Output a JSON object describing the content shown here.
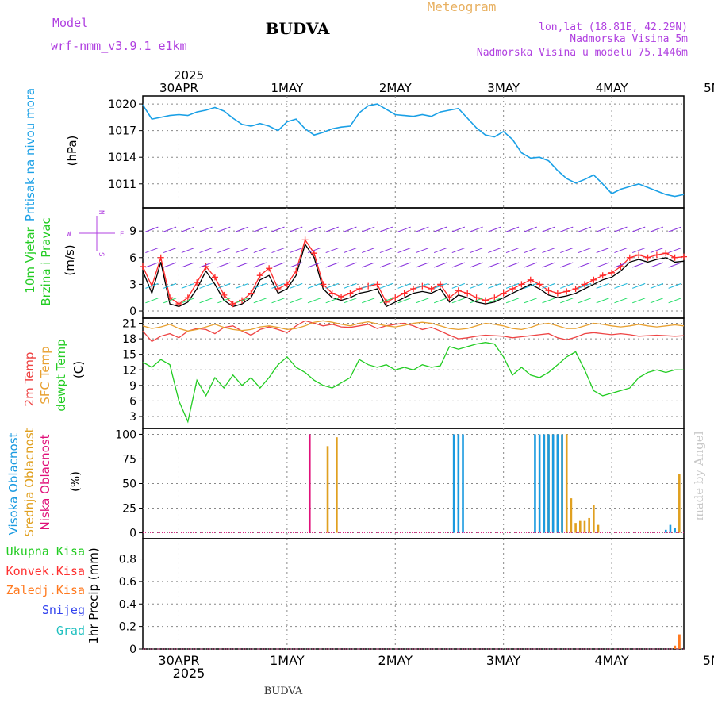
{
  "header": {
    "model_label": "Model",
    "model_name": "wrf-nmm_v3.9.1 e1km",
    "station": "BUDVA",
    "chart_kind": "Meteogram",
    "coords": "lon,lat (18.81E, 42.29N)",
    "elevation": "Nadmorska Visina 5m",
    "model_elevation": "Nadmorska Visina u modelu 75.1446m",
    "footer_station": "BUDVA",
    "credit": "made by Angel"
  },
  "axes": {
    "year": "2025",
    "day_labels": [
      "30APR",
      "1MAY",
      "2MAY",
      "3MAY",
      "4MAY",
      "5MAY"
    ],
    "x_range_hours": [
      -8,
      112
    ]
  },
  "colors": {
    "pressure": "#1aa0e6",
    "wind_speed": "#000000",
    "wind_gust": "#ff2a2a",
    "temp_2m": "#ee4444",
    "temp_sfc": "#e8a030",
    "dewpoint": "#22cc22",
    "cloud_high": "#1a9ae0",
    "cloud_mid": "#e0a020",
    "cloud_low": "#e0107a",
    "precip_total": "#22cc22",
    "precip_conv": "#ff3030",
    "precip_strat": "#ff7a20",
    "snow": "#3344ee",
    "hail": "#20c0c0",
    "label_magenta": "#b040e0",
    "label_orange": "#e8b060"
  },
  "chart_data": [
    {
      "id": "pressure",
      "type": "line",
      "ylabel_left": "Pritisak na nivou mora",
      "ylabel_unit": "(hPa)",
      "yticks": [
        1011,
        1014,
        1017,
        1020
      ],
      "ylim": [
        1008.3,
        1020.9
      ],
      "grid": true,
      "series": [
        {
          "key": "pressure",
          "x": [
            -8,
            -6,
            -4,
            -2,
            0,
            2,
            4,
            6,
            8,
            10,
            12,
            14,
            16,
            18,
            20,
            22,
            24,
            26,
            28,
            30,
            32,
            34,
            36,
            38,
            40,
            42,
            44,
            46,
            48,
            50,
            52,
            54,
            56,
            58,
            60,
            62,
            64,
            66,
            68,
            70,
            72,
            74,
            76,
            78,
            80,
            82,
            84,
            86,
            88,
            90,
            92,
            94,
            96,
            98,
            100,
            102,
            104,
            106,
            108,
            110,
            112
          ],
          "values": [
            1019.9,
            1018.3,
            1018.5,
            1018.7,
            1018.8,
            1018.7,
            1019.1,
            1019.3,
            1019.6,
            1019.2,
            1018.4,
            1017.7,
            1017.5,
            1017.8,
            1017.5,
            1017.0,
            1018.0,
            1018.3,
            1017.2,
            1016.5,
            1016.8,
            1017.2,
            1017.4,
            1017.5,
            1019.0,
            1019.8,
            1020.0,
            1019.4,
            1018.8,
            1018.7,
            1018.6,
            1018.8,
            1018.6,
            1019.1,
            1019.3,
            1019.5,
            1018.4,
            1017.3,
            1016.5,
            1016.3,
            1016.9,
            1016.0,
            1014.5,
            1013.9,
            1014.0,
            1013.6,
            1012.5,
            1011.6,
            1011.1,
            1011.5,
            1012.0,
            1011.0,
            1009.9,
            1010.4,
            1010.7,
            1011.0,
            1010.6,
            1010.2,
            1009.8,
            1009.6,
            1009.8
          ]
        }
      ]
    },
    {
      "id": "wind",
      "type": "line",
      "ylabel_left": "10m Vjetar",
      "ylabel_left2": "Brzina i Pravac",
      "ylabel_unit": "(m/s)",
      "compass": {
        "w": "W",
        "e": "E",
        "n": "N",
        "s": "S"
      },
      "yticks": [
        0,
        3,
        6,
        9
      ],
      "ylim": [
        -0.8,
        11.6
      ],
      "grid": true,
      "series": [
        {
          "key": "wind_speed",
          "name": "speed",
          "x": [
            -8,
            -6,
            -4,
            -2,
            0,
            2,
            4,
            6,
            8,
            10,
            12,
            14,
            16,
            18,
            20,
            22,
            24,
            26,
            28,
            30,
            32,
            34,
            36,
            38,
            40,
            42,
            44,
            46,
            48,
            50,
            52,
            54,
            56,
            58,
            60,
            62,
            64,
            66,
            68,
            70,
            72,
            74,
            76,
            78,
            80,
            82,
            84,
            86,
            88,
            90,
            92,
            94,
            96,
            98,
            100,
            102,
            104,
            106,
            108,
            110,
            112
          ],
          "values": [
            4.5,
            2.0,
            5.5,
            0.8,
            0.5,
            1.0,
            2.5,
            4.5,
            3.0,
            1.2,
            0.5,
            0.8,
            1.5,
            3.5,
            4.0,
            2.0,
            2.5,
            4.0,
            7.5,
            6.0,
            2.5,
            1.5,
            1.2,
            1.5,
            2.0,
            2.2,
            2.5,
            0.5,
            1.0,
            1.5,
            2.0,
            2.2,
            2.0,
            2.5,
            1.0,
            1.8,
            1.5,
            1.0,
            0.8,
            1.0,
            1.5,
            2.0,
            2.5,
            3.0,
            2.5,
            1.8,
            1.5,
            1.7,
            2.0,
            2.5,
            3.0,
            3.5,
            3.8,
            4.5,
            5.5,
            5.8,
            5.5,
            5.8,
            6.0,
            5.5,
            5.6
          ]
        },
        {
          "key": "wind_gust",
          "name": "gust",
          "x": [
            -8,
            -6,
            -4,
            -2,
            0,
            2,
            4,
            6,
            8,
            10,
            12,
            14,
            16,
            18,
            20,
            22,
            24,
            26,
            28,
            30,
            32,
            34,
            36,
            38,
            40,
            42,
            44,
            46,
            48,
            50,
            52,
            54,
            56,
            58,
            60,
            62,
            64,
            66,
            68,
            70,
            72,
            74,
            76,
            78,
            80,
            82,
            84,
            86,
            88,
            90,
            92,
            94,
            96,
            98,
            100,
            102,
            104,
            106,
            108,
            110,
            112
          ],
          "values": [
            5.0,
            2.8,
            6.0,
            1.5,
            0.8,
            1.5,
            3.2,
            5.0,
            3.8,
            1.8,
            0.8,
            1.2,
            2.0,
            4.0,
            4.8,
            2.5,
            3.0,
            4.5,
            8.0,
            6.5,
            3.0,
            2.0,
            1.6,
            2.0,
            2.5,
            2.8,
            3.0,
            1.0,
            1.5,
            2.0,
            2.5,
            2.8,
            2.5,
            3.0,
            1.5,
            2.3,
            2.0,
            1.5,
            1.2,
            1.5,
            2.0,
            2.5,
            3.0,
            3.5,
            3.0,
            2.3,
            2.0,
            2.2,
            2.5,
            3.0,
            3.5,
            4.0,
            4.3,
            5.0,
            6.0,
            6.3,
            6.0,
            6.3,
            6.5,
            6.0,
            6.1
          ]
        }
      ]
    },
    {
      "id": "temperature",
      "type": "line",
      "ylabel_left": "2m Temp",
      "ylabel_left2": "SFC Temp",
      "ylabel_left3": "dewpt Temp",
      "ylabel_unit": "(C)",
      "yticks": [
        3,
        6,
        9,
        12,
        15,
        18,
        21
      ],
      "ylim": [
        0.7,
        22.0
      ],
      "grid": true,
      "series": [
        {
          "key": "temp_2m",
          "name": "2m Temp",
          "x": [
            -8,
            -6,
            -4,
            -2,
            0,
            2,
            4,
            6,
            8,
            10,
            12,
            14,
            16,
            18,
            20,
            22,
            24,
            26,
            28,
            30,
            32,
            34,
            36,
            38,
            40,
            42,
            44,
            46,
            48,
            50,
            52,
            54,
            56,
            58,
            60,
            62,
            64,
            66,
            68,
            70,
            72,
            74,
            76,
            78,
            80,
            82,
            84,
            86,
            88,
            90,
            92,
            94,
            96,
            98,
            100,
            102,
            104,
            106,
            108,
            110,
            112
          ],
          "values": [
            19.5,
            17.5,
            18.5,
            19.0,
            18.2,
            19.5,
            20.0,
            19.8,
            19.0,
            20.2,
            20.5,
            19.5,
            18.7,
            19.8,
            20.3,
            19.8,
            19.2,
            20.5,
            21.5,
            21.0,
            20.5,
            20.8,
            20.3,
            20.2,
            20.5,
            20.8,
            20.0,
            20.5,
            20.8,
            21.0,
            20.5,
            19.8,
            20.2,
            19.5,
            18.7,
            18.0,
            18.2,
            18.5,
            18.7,
            18.6,
            18.5,
            18.2,
            18.4,
            18.6,
            18.8,
            19.0,
            18.2,
            17.8,
            18.3,
            19.0,
            19.2,
            19.0,
            18.8,
            19.0,
            18.8,
            18.5,
            18.6,
            18.7,
            18.6,
            18.5,
            18.6
          ]
        },
        {
          "key": "temp_sfc",
          "name": "SFC Temp",
          "x": [
            -8,
            -6,
            -4,
            -2,
            0,
            2,
            4,
            6,
            8,
            10,
            12,
            14,
            16,
            18,
            20,
            22,
            24,
            26,
            28,
            30,
            32,
            34,
            36,
            38,
            40,
            42,
            44,
            46,
            48,
            50,
            52,
            54,
            56,
            58,
            60,
            62,
            64,
            66,
            68,
            70,
            72,
            74,
            76,
            78,
            80,
            82,
            84,
            86,
            88,
            90,
            92,
            94,
            96,
            98,
            100,
            102,
            104,
            106,
            108,
            110,
            112
          ],
          "values": [
            20.5,
            20.0,
            20.3,
            20.8,
            20.0,
            19.5,
            19.8,
            20.3,
            20.8,
            20.2,
            19.8,
            19.6,
            19.8,
            20.3,
            20.5,
            20.2,
            19.8,
            20.0,
            20.5,
            21.2,
            21.5,
            21.2,
            20.8,
            20.5,
            21.0,
            21.3,
            20.9,
            20.5,
            20.3,
            20.6,
            21.0,
            21.2,
            21.0,
            20.5,
            20.0,
            19.8,
            20.0,
            20.5,
            21.0,
            20.8,
            20.5,
            20.0,
            19.8,
            20.2,
            20.8,
            21.0,
            20.5,
            20.0,
            20.0,
            20.5,
            21.0,
            20.8,
            20.5,
            20.3,
            20.5,
            20.8,
            20.5,
            20.3,
            20.5,
            20.7,
            20.5
          ]
        },
        {
          "key": "dewpoint",
          "name": "dewpt Temp",
          "x": [
            -8,
            -6,
            -4,
            -2,
            0,
            2,
            4,
            6,
            8,
            10,
            12,
            14,
            16,
            18,
            20,
            22,
            24,
            26,
            28,
            30,
            32,
            34,
            36,
            38,
            40,
            42,
            44,
            46,
            48,
            50,
            52,
            54,
            56,
            58,
            60,
            62,
            64,
            66,
            68,
            70,
            72,
            74,
            76,
            78,
            80,
            82,
            84,
            86,
            88,
            90,
            92,
            94,
            96,
            98,
            100,
            102,
            104,
            106,
            108,
            110,
            112
          ],
          "values": [
            13.5,
            12.5,
            14.0,
            13.0,
            6.0,
            2.0,
            10.0,
            7.0,
            10.5,
            8.5,
            11.0,
            9.0,
            10.5,
            8.5,
            10.5,
            13.0,
            14.5,
            12.5,
            11.5,
            10.0,
            9.0,
            8.5,
            9.5,
            10.5,
            14.0,
            13.0,
            12.5,
            13.0,
            12.0,
            12.5,
            12.0,
            13.0,
            12.5,
            12.8,
            16.5,
            16.0,
            16.5,
            17.0,
            17.3,
            17.0,
            14.5,
            11.0,
            12.5,
            11.0,
            10.5,
            11.5,
            13.0,
            14.5,
            15.5,
            12.0,
            8.0,
            7.0,
            7.5,
            8.0,
            8.5,
            10.5,
            11.5,
            12.0,
            11.5,
            12.0,
            12.0
          ]
        }
      ]
    },
    {
      "id": "clouds",
      "type": "bar",
      "ylabel_left": "Visoka Oblacnost",
      "ylabel_left2": "Srednja Oblacnost",
      "ylabel_left3": "Niska Oblacnost",
      "ylabel_unit": "(%)",
      "yticks": [
        0,
        25,
        50,
        75,
        100
      ],
      "ylim": [
        -6,
        106
      ],
      "grid": true,
      "series": [
        {
          "key": "cloud_low",
          "name": "Niska Oblacnost",
          "x": [
            29
          ],
          "values": [
            100
          ]
        },
        {
          "key": "cloud_mid",
          "name": "Srednja Oblacnost",
          "x": [
            33,
            35,
            81,
            82,
            83,
            84,
            85,
            86,
            87,
            88,
            89,
            90,
            91,
            92,
            93,
            111
          ],
          "values": [
            88,
            97,
            100,
            100,
            100,
            100,
            100,
            100,
            35,
            10,
            12,
            12,
            15,
            28,
            8,
            60
          ]
        },
        {
          "key": "cloud_high",
          "name": "Visoka Oblacnost",
          "x": [
            61,
            62,
            63,
            79,
            80,
            81,
            82,
            83,
            84,
            85,
            108,
            109,
            110
          ],
          "values": [
            100,
            100,
            100,
            100,
            100,
            100,
            100,
            100,
            100,
            100,
            3,
            8,
            5
          ]
        }
      ]
    },
    {
      "id": "precip",
      "type": "bar",
      "legend": [
        "Ukupna Kisa",
        "Konvek.Kisa",
        "Zaledj.Kisa",
        "Snijeg",
        "Grad"
      ],
      "ylabel_unit": "1hr Precip (mm)",
      "yticks": [
        0,
        0.2,
        0.4,
        0.6,
        0.8
      ],
      "ylim": [
        0,
        0.98
      ],
      "grid": true,
      "series": [
        {
          "key": "precip_strat",
          "name": "Zaledj.Kisa",
          "x": [
            110,
            111
          ],
          "values": [
            0.03,
            0.13
          ]
        }
      ]
    }
  ]
}
